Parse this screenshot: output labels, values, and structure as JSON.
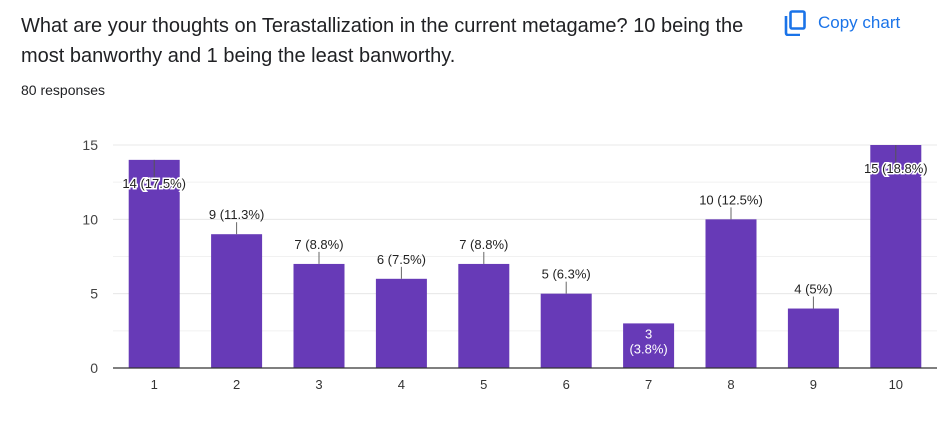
{
  "question": "What are your thoughts on Terastallization in the current metagame? 10 being the most banworthy and 1 being the least banworthy.",
  "responses_label": "80 responses",
  "copy_button": {
    "label": "Copy chart",
    "icon": "copy-icon"
  },
  "colors": {
    "bar": "#673ab7",
    "accent": "#1a73e8",
    "grid": "#e8e8e8",
    "axis": "#333333"
  },
  "chart_data": {
    "type": "bar",
    "title": "",
    "xlabel": "",
    "ylabel": "",
    "categories": [
      "1",
      "2",
      "3",
      "4",
      "5",
      "6",
      "7",
      "8",
      "9",
      "10"
    ],
    "values": [
      14,
      9,
      7,
      6,
      7,
      5,
      3,
      10,
      4,
      15
    ],
    "data_labels": [
      "14 (17.5%)",
      "9 (11.3%)",
      "7 (8.8%)",
      "6 (7.5%)",
      "7 (8.8%)",
      "5 (6.3%)",
      "3 (3.8%)",
      "10 (12.5%)",
      "4 (5%)",
      "15 (18.8%)"
    ],
    "ylim": [
      0,
      15
    ],
    "yticks": [
      0,
      5,
      10,
      15
    ],
    "grid": true,
    "legend": "none"
  }
}
